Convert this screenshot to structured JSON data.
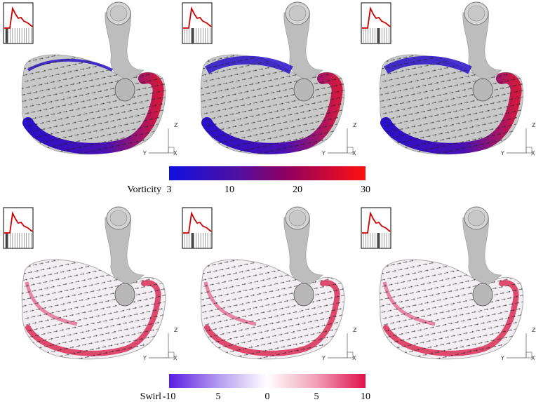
{
  "colorbars": [
    {
      "label": "Vorticity",
      "ticks": [
        "3",
        "10",
        "20",
        "30"
      ]
    },
    {
      "label": "Swirl",
      "ticks": [
        "-10",
        "5",
        "0",
        "5",
        "10"
      ]
    }
  ],
  "panels": [
    {
      "axes": [
        "Z",
        "Y",
        "X"
      ]
    },
    {
      "axes": [
        "Z",
        "Y",
        "X"
      ]
    },
    {
      "axes": [
        "Z",
        "Y",
        "X"
      ]
    },
    {
      "axes": [
        "Z",
        "Y",
        "X"
      ]
    },
    {
      "axes": [
        "Z",
        "Y",
        "X"
      ]
    },
    {
      "axes": [
        "Z",
        "Y",
        "X"
      ]
    }
  ]
}
